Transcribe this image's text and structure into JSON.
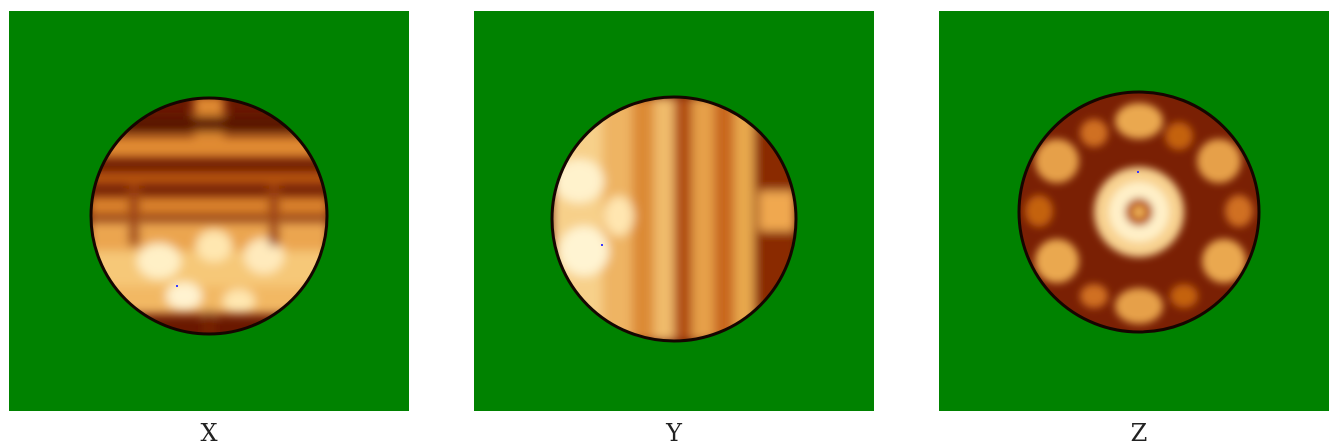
{
  "panels": [
    {
      "id": "x",
      "label": "X",
      "rows": 7
    },
    {
      "id": "y",
      "label": "Y",
      "columns": 7
    },
    {
      "id": "z",
      "label": "Z",
      "symmetry": 6
    }
  ],
  "colors": {
    "background": "#008200",
    "ring": "#150500",
    "dark": "#5a1400",
    "mid": "#c4620c",
    "bright": "#f2b65c",
    "hot": "#ffeec0",
    "marker": "#3a3aff"
  }
}
